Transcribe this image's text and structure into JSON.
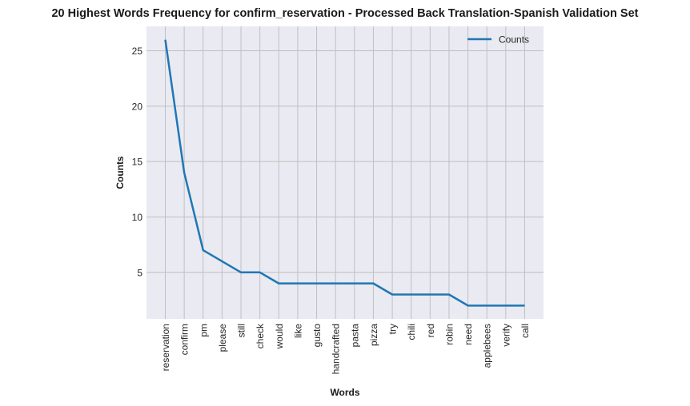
{
  "chart_data": {
    "type": "line",
    "title": "20 Highest Words Frequency for confirm_reservation - Processed Back Translation-Spanish Validation Set",
    "xlabel": "Words",
    "ylabel": "Counts",
    "categories": [
      "reservation",
      "confirm",
      "pm",
      "please",
      "still",
      "check",
      "would",
      "like",
      "gusto",
      "handcrafted",
      "pasta",
      "pizza",
      "try",
      "chili",
      "red",
      "robin",
      "need",
      "applebees",
      "verify",
      "call"
    ],
    "series": [
      {
        "name": "Counts",
        "values": [
          26,
          14,
          7,
          6,
          5,
          5,
          4,
          4,
          4,
          4,
          4,
          4,
          3,
          3,
          3,
          3,
          2,
          2,
          2,
          2
        ],
        "color": "#1f77b4"
      }
    ],
    "yticks": [
      5,
      10,
      15,
      20,
      25
    ],
    "ylim": [
      0.8,
      27.2
    ],
    "grid": true,
    "legend_position": "top-right",
    "background": "#eaeaf2",
    "grid_color": "#c0c0c0"
  }
}
